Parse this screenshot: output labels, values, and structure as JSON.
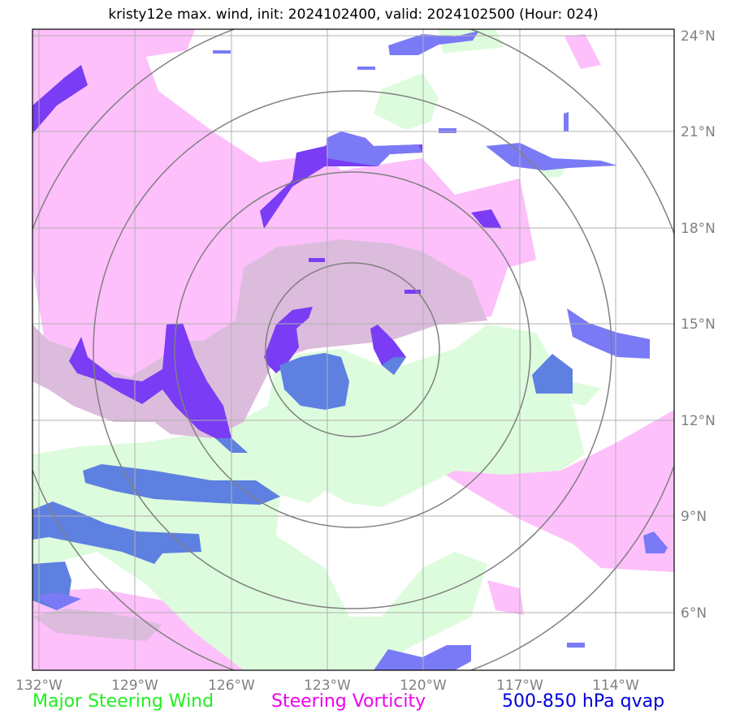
{
  "title": "kristy12e max. wind, init: 2024102400, valid: 2024102500 (Hour: 024)",
  "map": {
    "lon_ticks": [
      "132°W",
      "129°W",
      "126°W",
      "123°W",
      "120°W",
      "117°W",
      "114°W"
    ],
    "lat_ticks": [
      "24°N",
      "21°N",
      "18°N",
      "15°N",
      "12°N",
      "9°N",
      "6°N"
    ],
    "lon_range": [
      -132,
      -112
    ],
    "lat_range": [
      4.3,
      24.2
    ],
    "storm_center": {
      "lon": -122.0,
      "lat": 14.3
    }
  },
  "legend": {
    "wind": "Major Steering Wind",
    "vorticity": "Steering Vorticity",
    "qvap": "500-850 hPa qvap"
  },
  "colors": {
    "wind": "#ddfcdd",
    "vorticity": "#fdc0fb",
    "overlap": "#dcbcdc",
    "qvap": "#7a7af6",
    "qvap_over_vort": "#7a3cf4",
    "qvap_over_wind": "#5e80e0",
    "grid": "#b0b0b0",
    "rings": "#808080"
  }
}
